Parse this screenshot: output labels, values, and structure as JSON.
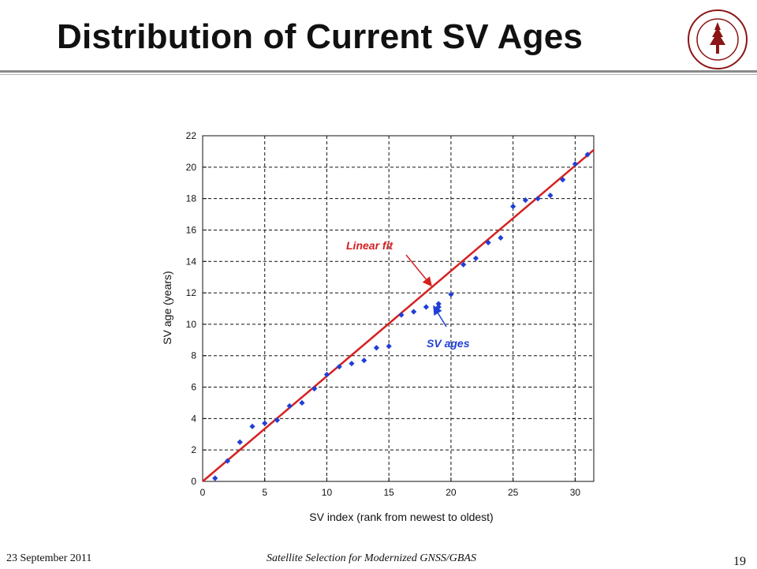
{
  "slide": {
    "title": "Distribution of Current SV Ages",
    "footer_left": "23 September 2011",
    "footer_center": "Satellite Selection for Modernized GNSS/GBAS",
    "page_number": "19",
    "seal_text": "LELAND STANFORD JUNIOR UNIVERSITY · ORGANIZED 1891"
  },
  "colors": {
    "points": "#1f3fd6",
    "fit_line": "#d62020",
    "grid": "#111111"
  },
  "chart_data": {
    "type": "scatter",
    "title": "",
    "xlabel": "SV index (rank from newest to oldest)",
    "ylabel": "SV age (years)",
    "xlim": [
      0,
      31.5
    ],
    "ylim": [
      0,
      22
    ],
    "xticks": [
      0,
      5,
      10,
      15,
      20,
      25,
      30
    ],
    "yticks": [
      0,
      2,
      4,
      6,
      8,
      10,
      12,
      14,
      16,
      18,
      20,
      22
    ],
    "grid": true,
    "series": [
      {
        "name": "SV ages",
        "x": [
          1,
          2,
          3,
          4,
          5,
          6,
          7,
          8,
          9,
          10,
          11,
          12,
          13,
          14,
          15,
          16,
          17,
          18,
          19,
          19,
          20,
          21,
          22,
          23,
          24,
          25,
          26,
          27,
          28,
          29,
          30,
          31
        ],
        "y": [
          0.2,
          1.3,
          2.5,
          3.5,
          3.7,
          3.9,
          4.8,
          5.0,
          5.9,
          6.8,
          7.3,
          7.5,
          7.7,
          8.5,
          8.6,
          10.6,
          10.8,
          11.1,
          11.3,
          11.1,
          11.9,
          13.8,
          14.2,
          15.2,
          15.5,
          17.5,
          17.9,
          18.0,
          18.2,
          19.2,
          20.2,
          20.8
        ]
      },
      {
        "name": "Linear fit",
        "type": "line",
        "x": [
          0,
          31.5
        ],
        "y": [
          0,
          21.1
        ]
      }
    ],
    "annotations": [
      {
        "text": "Linear fit",
        "color": "#d62020"
      },
      {
        "text": "SV ages",
        "color": "#1f3fd6"
      }
    ]
  }
}
